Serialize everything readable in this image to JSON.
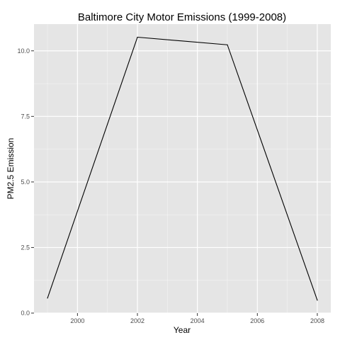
{
  "chart_data": {
    "type": "line",
    "title": "Baltimore City Motor Emissions (1999-2008)",
    "xlabel": "Year",
    "ylabel": "PM2.5 Emission",
    "x": [
      1999,
      2002,
      2005,
      2008
    ],
    "series": [
      {
        "values": [
          0.57,
          10.52,
          10.23,
          0.49
        ]
      }
    ],
    "xlim": [
      1998.55,
      2008.45
    ],
    "ylim": [
      0,
      11.02
    ],
    "x_ticks": [
      2000,
      2002,
      2004,
      2006,
      2008
    ],
    "y_ticks": [
      0,
      2.5,
      5,
      7.5,
      10
    ],
    "x_tick_labels": [
      "2000",
      "2002",
      "2004",
      "2006",
      "2008"
    ],
    "y_tick_labels": [
      "0.0",
      "2.5",
      "5.0",
      "7.5",
      "10.0"
    ],
    "grid": true,
    "panel_color": "#e5e5e5",
    "grid_color": "#ffffff",
    "line_color": "#000000",
    "tick_color": "#333333"
  }
}
